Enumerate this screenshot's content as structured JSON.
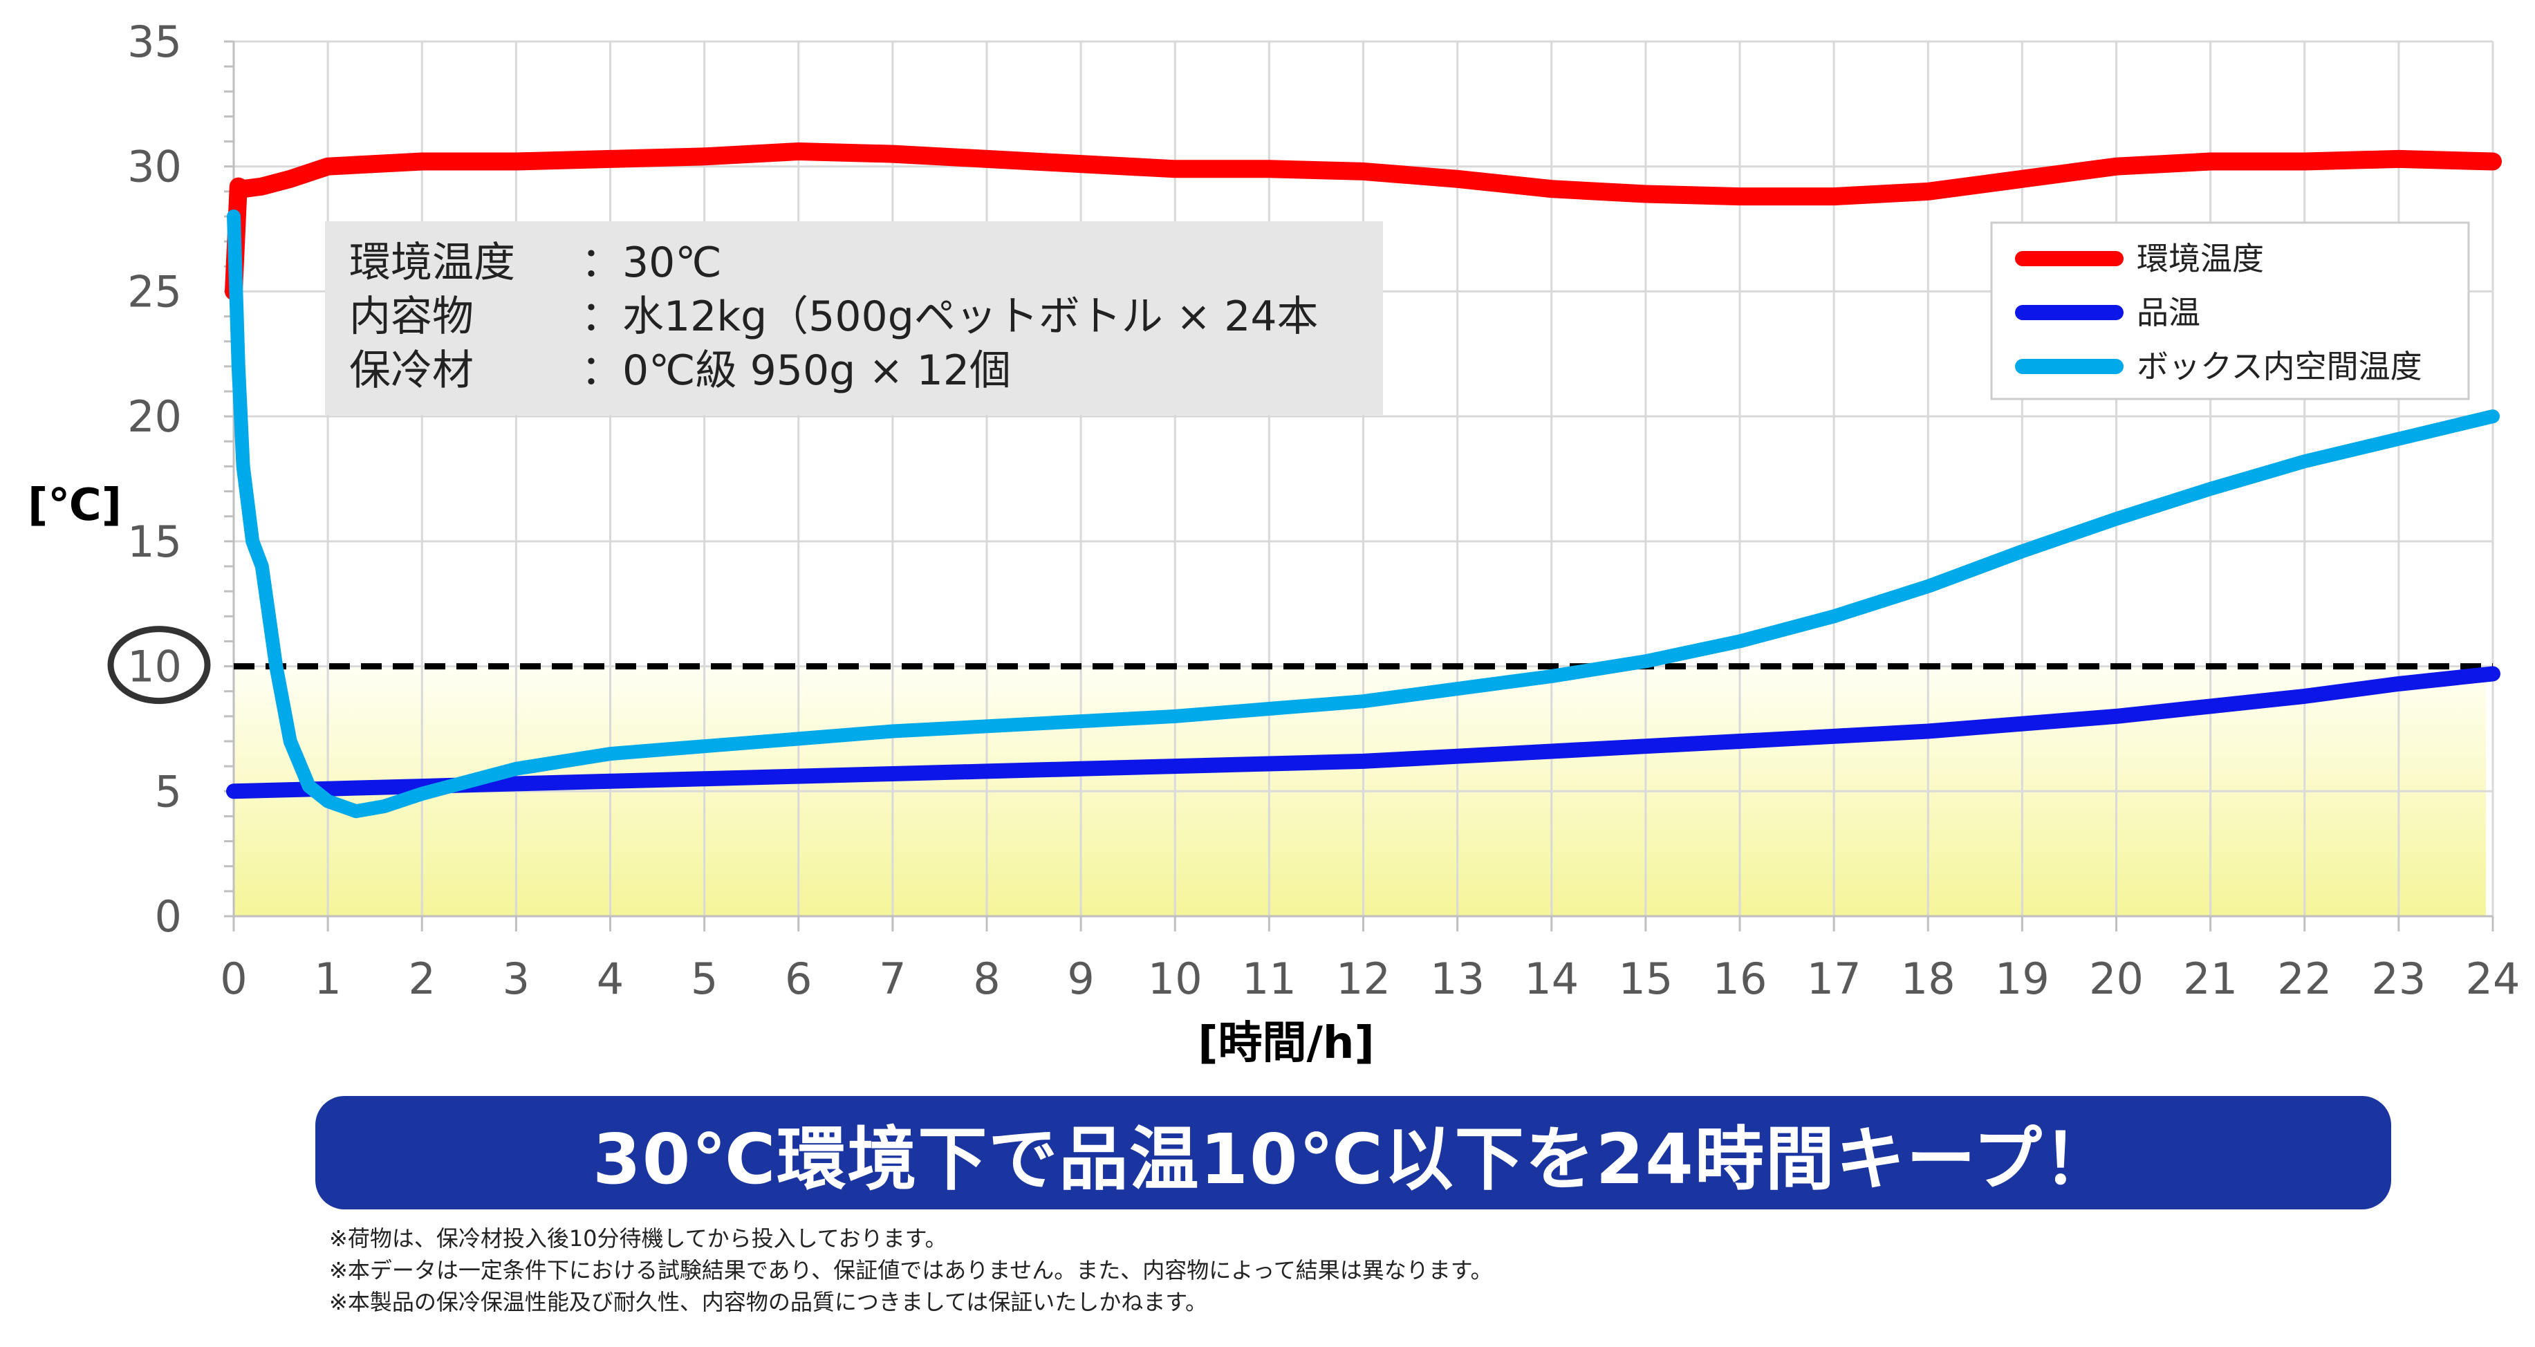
{
  "chart_data": {
    "type": "line",
    "xlabel": "[時間/h]",
    "ylabel": "[℃]",
    "xlim": [
      0,
      24
    ],
    "ylim": [
      0,
      35
    ],
    "x_ticks": [
      "0",
      "1",
      "2",
      "3",
      "4",
      "5",
      "6",
      "7",
      "8",
      "9",
      "10",
      "11",
      "12",
      "13",
      "14",
      "15",
      "16",
      "17",
      "18",
      "19",
      "20",
      "21",
      "22",
      "23",
      "24"
    ],
    "y_ticks": [
      "0",
      "5",
      "10",
      "15",
      "20",
      "25",
      "30",
      "35"
    ],
    "grid": true,
    "legend_position": "top-right",
    "threshold": {
      "value": 10,
      "label": "10",
      "style": "dashed",
      "color": "#000000"
    },
    "highlight_band": {
      "from": 0,
      "to": 10,
      "colors": [
        "#f5f59a",
        "#fffff4"
      ]
    },
    "series": [
      {
        "name": "環境温度",
        "color": "#ff0000",
        "x": [
          0,
          0.05,
          0.1,
          0.3,
          0.6,
          1,
          2,
          3,
          4,
          5,
          6,
          7,
          8,
          9,
          10,
          11,
          12,
          13,
          14,
          15,
          16,
          17,
          18,
          19,
          20,
          21,
          22,
          23,
          24
        ],
        "y": [
          25,
          29.2,
          29.1,
          29.2,
          29.5,
          30,
          30.2,
          30.2,
          30.3,
          30.4,
          30.6,
          30.5,
          30.3,
          30.1,
          29.9,
          29.9,
          29.8,
          29.5,
          29.1,
          28.9,
          28.8,
          28.8,
          29.0,
          29.5,
          30.0,
          30.2,
          30.2,
          30.3,
          30.2
        ]
      },
      {
        "name": "品温",
        "color": "#0d16e8",
        "x": [
          0,
          1,
          2,
          3,
          4,
          5,
          6,
          7,
          8,
          9,
          10,
          11,
          12,
          13,
          14,
          15,
          16,
          17,
          18,
          19,
          20,
          21,
          22,
          23,
          24
        ],
        "y": [
          5.0,
          5.1,
          5.2,
          5.3,
          5.4,
          5.5,
          5.6,
          5.7,
          5.8,
          5.9,
          6.0,
          6.1,
          6.2,
          6.4,
          6.6,
          6.8,
          7.0,
          7.2,
          7.4,
          7.7,
          8.0,
          8.4,
          8.8,
          9.3,
          9.7
        ]
      },
      {
        "name": "ボックス内空間温度",
        "color": "#00aaea",
        "x": [
          0,
          0.05,
          0.1,
          0.2,
          0.3,
          0.45,
          0.6,
          0.8,
          1,
          1.3,
          1.6,
          2,
          2.5,
          3,
          4,
          5,
          6,
          7,
          8,
          9,
          10,
          11,
          12,
          13,
          14,
          15,
          16,
          17,
          18,
          19,
          20,
          21,
          22,
          23,
          24
        ],
        "y": [
          28,
          22,
          18,
          15,
          14,
          10,
          7,
          5.2,
          4.6,
          4.2,
          4.4,
          4.9,
          5.4,
          5.9,
          6.5,
          6.8,
          7.1,
          7.4,
          7.6,
          7.8,
          8.0,
          8.3,
          8.6,
          9.1,
          9.6,
          10.2,
          11.0,
          12.0,
          13.2,
          14.6,
          15.9,
          17.1,
          18.2,
          19.1,
          20.0
        ]
      }
    ]
  },
  "info_box": {
    "rows": [
      {
        "label": "環境温度",
        "value": "：30℃"
      },
      {
        "label": "内容物",
        "value": "：水12kg（500gペットボトル × 24本"
      },
      {
        "label": "保冷材",
        "value": "：0℃級 950g × 12個"
      }
    ]
  },
  "banner": {
    "text": "30℃環境下で品温10℃以下を24時間キープ！",
    "color": "#1a35a0"
  },
  "notes": [
    "※荷物は、保冷材投入後10分待機してから投入しております。",
    "※本データは一定条件下における試験結果であり、保証値ではありません。また、内容物によって結果は異なります。",
    "※本製品の保冷保温性能及び耐久性、内容物の品質につきましては保証いたしかねます。"
  ]
}
